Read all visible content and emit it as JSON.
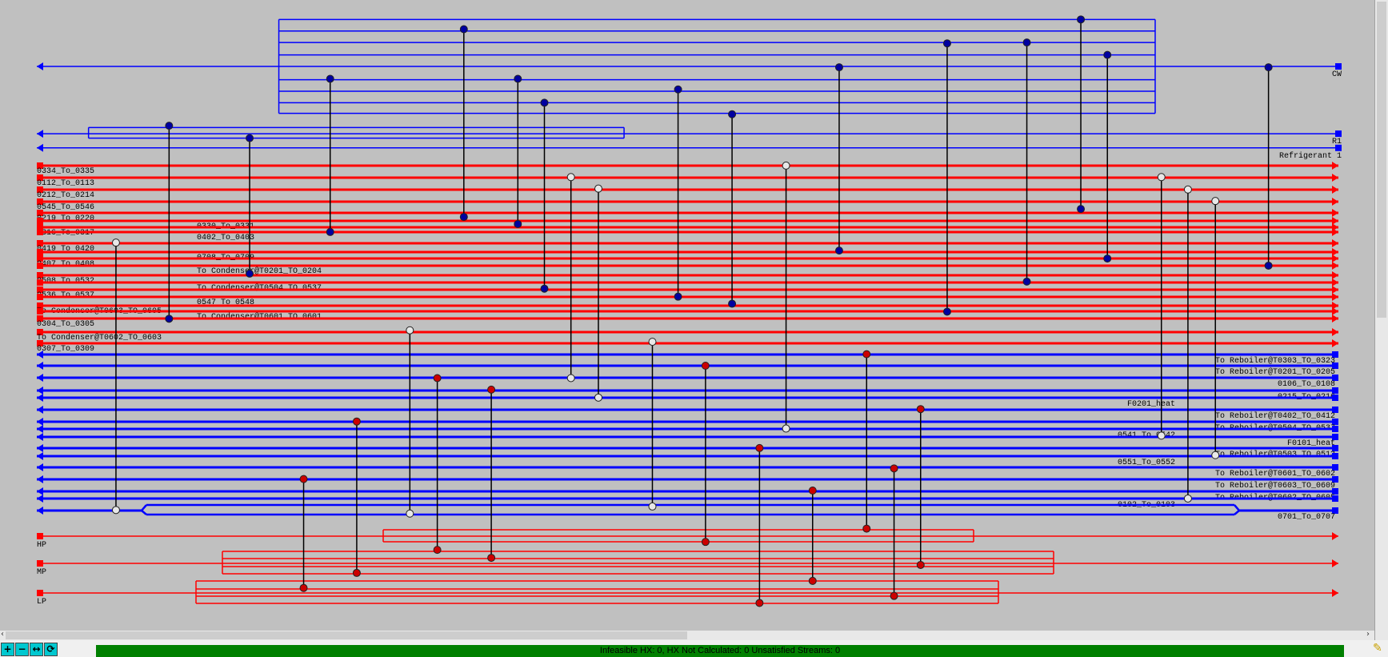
{
  "utilities": {
    "cw": {
      "label": "CW"
    },
    "r1": {
      "label": "R1"
    },
    "refrigerant": {
      "label": "Refrigerant 1"
    },
    "hp": {
      "label": "HP"
    },
    "mp": {
      "label": "MP"
    },
    "lp": {
      "label": "LP"
    }
  },
  "hot_streams": [
    "0334_To_0335",
    "0112_To_0113",
    "0212_To_0214",
    "0545_To_0546",
    "0219_To_0220",
    "0330_To_0331",
    "0316_To_0317",
    "0402_To_0403",
    "0419_To_0420",
    "0708_To_0709",
    "0407_To_0408",
    "To Condenser@T0201_TO_0204",
    "0508_To_0532",
    "To Condenser@T0504_TO_0537",
    "0536_To_0537",
    "0547_To_0548",
    "To Condenser@T0603_TO_0605",
    "To Condenser@T0601_TO_0601",
    "0304_To_0305",
    "To Condenser@T0602_TO_0603",
    "0307_To_0309"
  ],
  "cold_streams": [
    "To Reboiler@T0303_TO_0323",
    "To Reboiler@T0201_TO_0205",
    "0106_To_0108",
    "0215_To_0216",
    "F0201_heat",
    "To Reboiler@T0402_TO_0412",
    "To Reboiler@T0504_TO_0537",
    "0541_To_0542",
    "F0101_heat",
    "To Reboiler@T0503_TO_0513",
    "0551_To_0552",
    "To Reboiler@T0601_TO_0602",
    "To Reboiler@T0603_TO_0609",
    "To Reboiler@T0602_TO_0605",
    "0102_To_0103",
    "0701_To_0707"
  ],
  "colors": {
    "hot": "#ff0000",
    "cold": "#0000ff",
    "cooler": "#0000a0",
    "heater": "#cc0000",
    "exchanger": "#e8e8e8",
    "status_bg": "#008000"
  },
  "toolbar": {
    "zoom_in": "+",
    "zoom_out": "−",
    "fit": "↔",
    "refresh": "⟳"
  },
  "status": {
    "text": "Infeasible HX: 0, HX Not Calculated: 0     Unsatisfied Streams: 0"
  }
}
